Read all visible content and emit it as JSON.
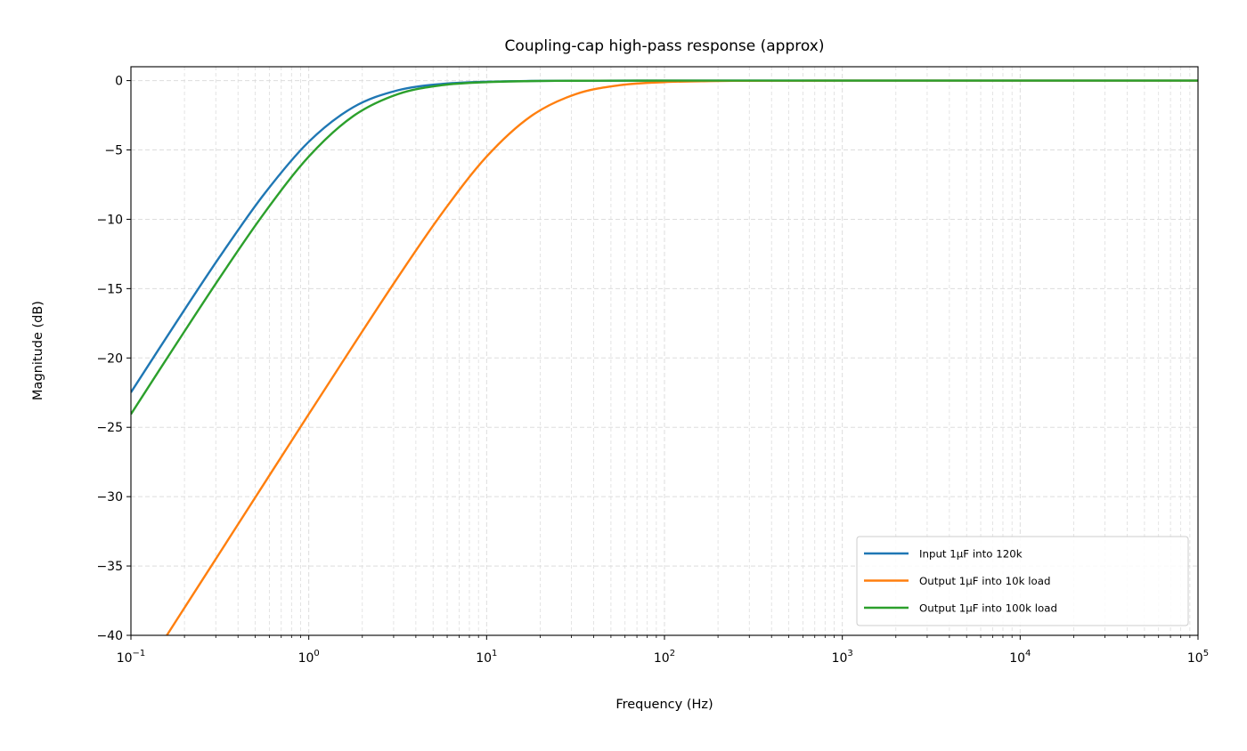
{
  "chart_data": {
    "type": "line",
    "title": "Coupling-cap high-pass response (approx)",
    "xlabel": "Frequency (Hz)",
    "ylabel": "Magnitude (dB)",
    "xscale": "log",
    "xlim": [
      0.1,
      100000
    ],
    "ylim": [
      -40,
      1
    ],
    "x_ticks": [
      {
        "base": "10",
        "exp": "−1",
        "value": 0.1
      },
      {
        "base": "10",
        "exp": "0",
        "value": 1
      },
      {
        "base": "10",
        "exp": "1",
        "value": 10
      },
      {
        "base": "10",
        "exp": "2",
        "value": 100
      },
      {
        "base": "10",
        "exp": "3",
        "value": 1000
      },
      {
        "base": "10",
        "exp": "4",
        "value": 10000
      },
      {
        "base": "10",
        "exp": "5",
        "value": 100000
      }
    ],
    "y_ticks": [
      {
        "label": "0",
        "value": 0
      },
      {
        "label": "−5",
        "value": -5
      },
      {
        "label": "−10",
        "value": -10
      },
      {
        "label": "−15",
        "value": -15
      },
      {
        "label": "−20",
        "value": -20
      },
      {
        "label": "−25",
        "value": -25
      },
      {
        "label": "−30",
        "value": -30
      },
      {
        "label": "−35",
        "value": -35
      },
      {
        "label": "−40",
        "value": -40
      }
    ],
    "grid": "major and minor, dashed",
    "legend_position": "lower-right",
    "x": [
      0.1,
      0.1778,
      0.3162,
      0.5623,
      1,
      1.778,
      3.162,
      5.623,
      10,
      17.78,
      31.62,
      56.23,
      100,
      177.8,
      316.2,
      562.3,
      1000,
      1778,
      3162,
      5623,
      10000,
      17780,
      31620,
      56230,
      100000
    ],
    "series": [
      {
        "name": "Input 1µF into 120k",
        "color": "#1f77b4",
        "values": [
          -22.48,
          -17.53,
          -12.69,
          -8.17,
          -4.41,
          -1.92,
          -0.7,
          -0.24,
          -0.08,
          -0.024,
          -0.008,
          -0.002,
          -0.001,
          0,
          0,
          0,
          0,
          0,
          0,
          0,
          0,
          0,
          0,
          0,
          0
        ]
      },
      {
        "name": "Output 1µF into 10k load",
        "color": "#ff7f0e",
        "values": [
          -44.04,
          -39.04,
          -34.04,
          -29.04,
          -24.05,
          -19.09,
          -14.2,
          -9.55,
          -5.48,
          -2.56,
          -0.98,
          -0.33,
          -0.109,
          -0.035,
          -0.011,
          -0.0035,
          -0.0011,
          0,
          0,
          0,
          0,
          0,
          0,
          0,
          0
        ]
      },
      {
        "name": "Output 1µF into 100k load",
        "color": "#2ca02c",
        "values": [
          -24.05,
          -19.09,
          -14.2,
          -9.55,
          -5.48,
          -2.56,
          -0.98,
          -0.33,
          -0.109,
          -0.035,
          -0.011,
          -0.0035,
          -0.0011,
          0,
          0,
          0,
          0,
          0,
          0,
          0,
          0,
          0,
          0,
          0,
          0
        ]
      }
    ]
  }
}
